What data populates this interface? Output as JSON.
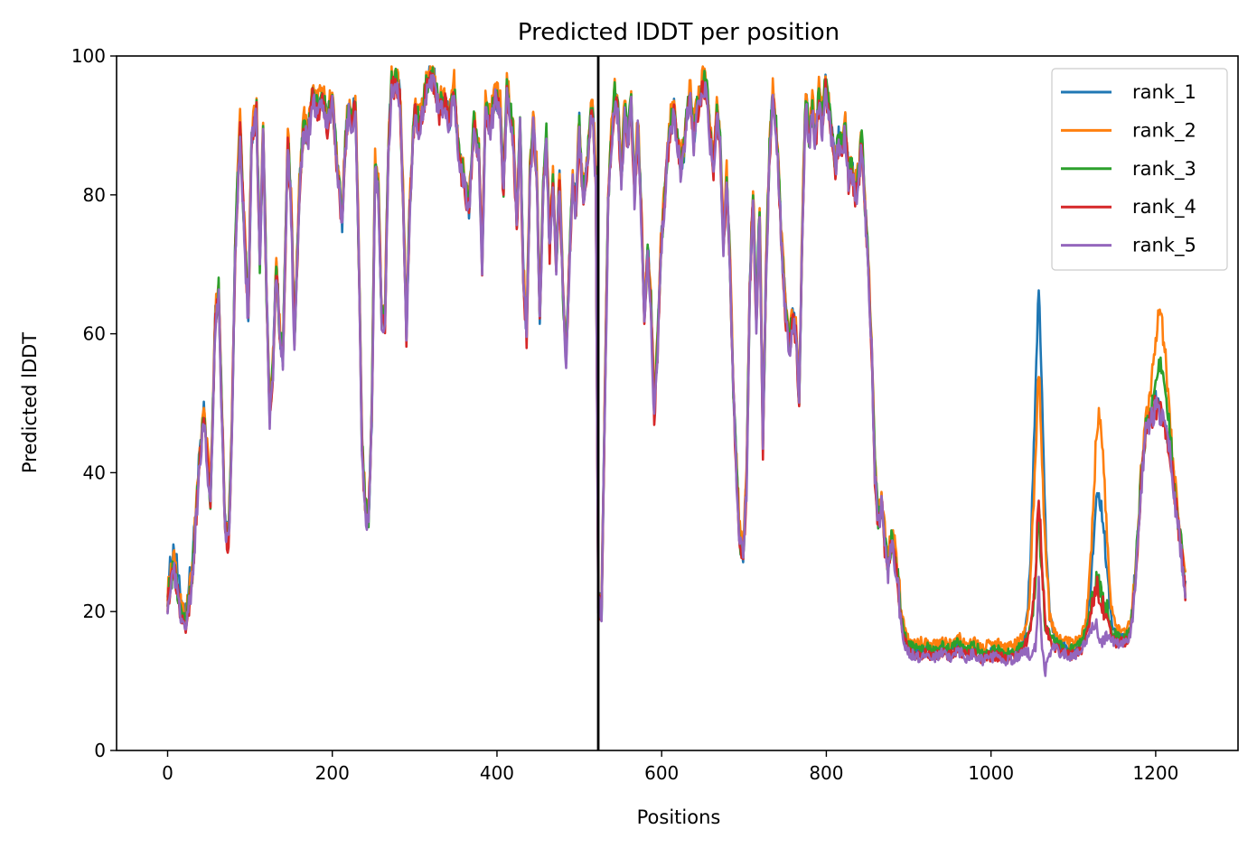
{
  "chart_data": {
    "type": "line",
    "title": "Predicted lDDT per position",
    "xlabel": "Positions",
    "ylabel": "Predicted lDDT",
    "xlim": [
      -62,
      1300
    ],
    "ylim": [
      0,
      100
    ],
    "xticks": [
      0,
      200,
      400,
      600,
      800,
      1000,
      1200
    ],
    "yticks": [
      0,
      20,
      40,
      60,
      80,
      100
    ],
    "grid": false,
    "legend_position": "top-right",
    "vertical_line_x": 523,
    "colors": {
      "rank_1": "#1f77b4",
      "rank_2": "#ff7f0e",
      "rank_3": "#2ca02c",
      "rank_4": "#d62728",
      "rank_5": "#9467bd",
      "divider": "#000000"
    },
    "base_profile": [
      [
        0,
        22
      ],
      [
        8,
        26
      ],
      [
        15,
        20
      ],
      [
        22,
        18
      ],
      [
        30,
        25
      ],
      [
        38,
        40
      ],
      [
        44,
        48
      ],
      [
        48,
        42
      ],
      [
        52,
        36
      ],
      [
        58,
        62
      ],
      [
        62,
        66
      ],
      [
        66,
        48
      ],
      [
        70,
        32
      ],
      [
        74,
        30
      ],
      [
        78,
        45
      ],
      [
        82,
        72
      ],
      [
        88,
        90
      ],
      [
        94,
        72
      ],
      [
        98,
        62
      ],
      [
        102,
        88
      ],
      [
        108,
        92
      ],
      [
        112,
        70
      ],
      [
        116,
        90
      ],
      [
        120,
        66
      ],
      [
        124,
        48
      ],
      [
        128,
        55
      ],
      [
        132,
        70
      ],
      [
        136,
        60
      ],
      [
        140,
        56
      ],
      [
        146,
        88
      ],
      [
        150,
        78
      ],
      [
        154,
        58
      ],
      [
        160,
        80
      ],
      [
        165,
        90
      ],
      [
        170,
        88
      ],
      [
        176,
        94
      ],
      [
        182,
        92
      ],
      [
        188,
        94
      ],
      [
        194,
        90
      ],
      [
        200,
        94
      ],
      [
        206,
        84
      ],
      [
        212,
        76
      ],
      [
        216,
        88
      ],
      [
        220,
        92
      ],
      [
        224,
        90
      ],
      [
        228,
        94
      ],
      [
        232,
        72
      ],
      [
        236,
        44
      ],
      [
        240,
        35
      ],
      [
        244,
        33
      ],
      [
        248,
        48
      ],
      [
        252,
        84
      ],
      [
        256,
        80
      ],
      [
        260,
        62
      ],
      [
        264,
        62
      ],
      [
        268,
        86
      ],
      [
        272,
        96
      ],
      [
        278,
        96
      ],
      [
        282,
        94
      ],
      [
        286,
        80
      ],
      [
        290,
        60
      ],
      [
        294,
        78
      ],
      [
        300,
        92
      ],
      [
        306,
        90
      ],
      [
        312,
        94
      ],
      [
        318,
        97
      ],
      [
        324,
        96
      ],
      [
        330,
        92
      ],
      [
        336,
        94
      ],
      [
        342,
        90
      ],
      [
        348,
        95
      ],
      [
        354,
        85
      ],
      [
        360,
        82
      ],
      [
        366,
        78
      ],
      [
        372,
        90
      ],
      [
        378,
        86
      ],
      [
        382,
        70
      ],
      [
        386,
        92
      ],
      [
        392,
        90
      ],
      [
        398,
        94
      ],
      [
        404,
        92
      ],
      [
        408,
        80
      ],
      [
        412,
        95
      ],
      [
        416,
        92
      ],
      [
        420,
        88
      ],
      [
        424,
        75
      ],
      [
        428,
        90
      ],
      [
        432,
        68
      ],
      [
        436,
        60
      ],
      [
        440,
        82
      ],
      [
        444,
        90
      ],
      [
        448,
        84
      ],
      [
        452,
        62
      ],
      [
        456,
        80
      ],
      [
        460,
        88
      ],
      [
        464,
        72
      ],
      [
        468,
        82
      ],
      [
        472,
        70
      ],
      [
        476,
        82
      ],
      [
        480,
        66
      ],
      [
        484,
        56
      ],
      [
        488,
        70
      ],
      [
        492,
        82
      ],
      [
        496,
        78
      ],
      [
        500,
        90
      ],
      [
        504,
        80
      ],
      [
        508,
        82
      ],
      [
        512,
        88
      ],
      [
        516,
        93
      ],
      [
        520,
        82
      ],
      [
        523,
        22
      ],
      [
        527,
        20
      ],
      [
        531,
        50
      ],
      [
        535,
        78
      ],
      [
        539,
        88
      ],
      [
        543,
        94
      ],
      [
        547,
        92
      ],
      [
        551,
        82
      ],
      [
        555,
        92
      ],
      [
        559,
        88
      ],
      [
        563,
        93
      ],
      [
        567,
        80
      ],
      [
        571,
        90
      ],
      [
        575,
        78
      ],
      [
        579,
        62
      ],
      [
        583,
        72
      ],
      [
        587,
        64
      ],
      [
        591,
        48
      ],
      [
        595,
        58
      ],
      [
        599,
        72
      ],
      [
        603,
        78
      ],
      [
        607,
        86
      ],
      [
        611,
        90
      ],
      [
        615,
        92
      ],
      [
        619,
        88
      ],
      [
        623,
        84
      ],
      [
        627,
        86
      ],
      [
        631,
        92
      ],
      [
        635,
        94
      ],
      [
        639,
        88
      ],
      [
        643,
        92
      ],
      [
        647,
        94
      ],
      [
        651,
        96
      ],
      [
        655,
        95
      ],
      [
        659,
        88
      ],
      [
        663,
        84
      ],
      [
        667,
        92
      ],
      [
        671,
        88
      ],
      [
        675,
        72
      ],
      [
        679,
        82
      ],
      [
        683,
        70
      ],
      [
        687,
        52
      ],
      [
        691,
        40
      ],
      [
        695,
        30
      ],
      [
        699,
        28
      ],
      [
        703,
        38
      ],
      [
        707,
        66
      ],
      [
        711,
        80
      ],
      [
        715,
        62
      ],
      [
        719,
        78
      ],
      [
        723,
        44
      ],
      [
        727,
        70
      ],
      [
        731,
        86
      ],
      [
        735,
        94
      ],
      [
        739,
        90
      ],
      [
        743,
        80
      ],
      [
        747,
        70
      ],
      [
        751,
        62
      ],
      [
        755,
        58
      ],
      [
        759,
        62
      ],
      [
        763,
        60
      ],
      [
        767,
        50
      ],
      [
        771,
        76
      ],
      [
        775,
        94
      ],
      [
        779,
        88
      ],
      [
        783,
        92
      ],
      [
        787,
        88
      ],
      [
        791,
        94
      ],
      [
        795,
        90
      ],
      [
        799,
        96
      ],
      [
        803,
        92
      ],
      [
        807,
        88
      ],
      [
        811,
        84
      ],
      [
        815,
        88
      ],
      [
        819,
        86
      ],
      [
        823,
        90
      ],
      [
        827,
        82
      ],
      [
        831,
        84
      ],
      [
        835,
        80
      ],
      [
        839,
        82
      ],
      [
        843,
        88
      ],
      [
        847,
        78
      ],
      [
        851,
        70
      ],
      [
        855,
        58
      ],
      [
        859,
        40
      ],
      [
        863,
        33
      ],
      [
        867,
        36
      ],
      [
        871,
        30
      ],
      [
        875,
        26
      ],
      [
        879,
        30
      ],
      [
        883,
        28
      ],
      [
        887,
        24
      ],
      [
        891,
        19
      ],
      [
        895,
        16
      ],
      [
        899,
        15
      ],
      [
        903,
        14.5
      ],
      [
        910,
        14
      ],
      [
        920,
        14.5
      ],
      [
        930,
        14
      ],
      [
        940,
        14.5
      ],
      [
        950,
        14
      ],
      [
        960,
        15
      ],
      [
        970,
        14
      ],
      [
        980,
        14.5
      ],
      [
        990,
        13.5
      ],
      [
        1000,
        14
      ],
      [
        1010,
        14
      ],
      [
        1020,
        13.5
      ],
      [
        1030,
        14
      ],
      [
        1040,
        15
      ],
      [
        1048,
        17
      ],
      [
        1054,
        24
      ],
      [
        1058,
        34
      ],
      [
        1062,
        24
      ],
      [
        1066,
        17
      ],
      [
        1072,
        16
      ],
      [
        1080,
        15
      ],
      [
        1090,
        14.5
      ],
      [
        1100,
        14
      ],
      [
        1110,
        15
      ],
      [
        1116,
        17
      ],
      [
        1122,
        20
      ],
      [
        1128,
        24
      ],
      [
        1134,
        22
      ],
      [
        1140,
        20
      ],
      [
        1146,
        17
      ],
      [
        1152,
        16
      ],
      [
        1160,
        16
      ],
      [
        1166,
        16
      ],
      [
        1170,
        18
      ],
      [
        1176,
        26
      ],
      [
        1182,
        38
      ],
      [
        1188,
        46
      ],
      [
        1194,
        48
      ],
      [
        1200,
        50
      ],
      [
        1206,
        49
      ],
      [
        1212,
        47
      ],
      [
        1218,
        43
      ],
      [
        1224,
        36
      ],
      [
        1230,
        30
      ],
      [
        1236,
        23
      ]
    ],
    "series": [
      {
        "name": "rank_1",
        "offset": 0.4,
        "peaks": [
          [
            1058,
            32
          ],
          [
            1132,
            13
          ],
          [
            28,
            2
          ],
          [
            8,
            3
          ]
        ]
      },
      {
        "name": "rank_2",
        "offset": 1.3,
        "peaks": [
          [
            1058,
            20
          ],
          [
            1132,
            24
          ],
          [
            1206,
            12
          ]
        ]
      },
      {
        "name": "rank_3",
        "offset": 0.5,
        "peaks": [
          [
            1206,
            6
          ]
        ]
      },
      {
        "name": "rank_4",
        "offset": -0.4,
        "peaks": [
          [
            1058,
            3
          ]
        ]
      },
      {
        "name": "rank_5",
        "offset": -0.6,
        "peaks": [
          [
            1058,
            -10
          ],
          [
            1132,
            -6
          ]
        ]
      }
    ]
  }
}
